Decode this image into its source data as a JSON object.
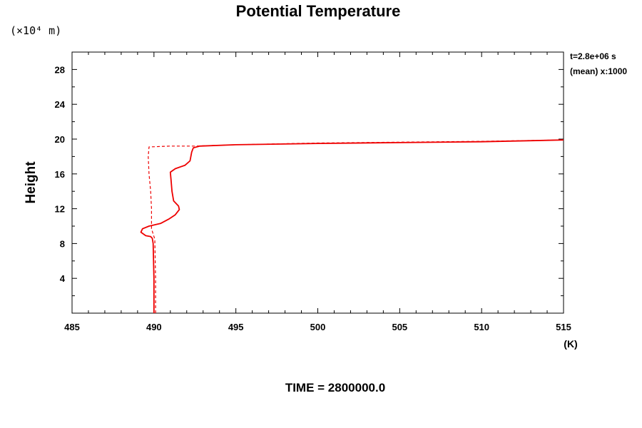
{
  "chart_data": {
    "type": "line",
    "title": "Potential Temperature",
    "y_unit": "(×10⁴ m)",
    "ylabel": "Height",
    "xlabel": "(K)",
    "xlim": [
      485,
      515
    ],
    "ylim": [
      0,
      30
    ],
    "x_ticks": [
      "485",
      "490",
      "495",
      "500",
      "505",
      "510",
      "515"
    ],
    "y_ticks": [
      "4",
      "8",
      "12",
      "16",
      "20",
      "24",
      "28"
    ],
    "annotations": [
      "t=2.8e+06 s",
      "(mean) x:1000"
    ],
    "footer": "TIME = 2800000.0",
    "color": "#ee0000",
    "series": [
      {
        "style": "solid",
        "points": [
          [
            490.0,
            0.0
          ],
          [
            490.0,
            4.0
          ],
          [
            489.95,
            8.0
          ],
          [
            489.9,
            8.6
          ],
          [
            489.8,
            8.8
          ],
          [
            489.5,
            8.9
          ],
          [
            489.2,
            9.3
          ],
          [
            489.3,
            9.7
          ],
          [
            489.7,
            10.0
          ],
          [
            490.4,
            10.3
          ],
          [
            490.9,
            10.8
          ],
          [
            491.3,
            11.3
          ],
          [
            491.55,
            11.9
          ],
          [
            491.5,
            12.3
          ],
          [
            491.2,
            12.9
          ],
          [
            491.1,
            14.0
          ],
          [
            491.05,
            15.2
          ],
          [
            491.0,
            16.2
          ],
          [
            491.3,
            16.6
          ],
          [
            491.9,
            17.0
          ],
          [
            492.2,
            17.5
          ],
          [
            492.3,
            18.5
          ],
          [
            492.4,
            19.0
          ],
          [
            492.8,
            19.2
          ],
          [
            495.0,
            19.35
          ],
          [
            500.0,
            19.5
          ],
          [
            505.0,
            19.6
          ],
          [
            510.0,
            19.7
          ],
          [
            515.0,
            19.9
          ]
        ]
      },
      {
        "style": "dashed",
        "points": [
          [
            490.1,
            0.0
          ],
          [
            490.1,
            4.0
          ],
          [
            490.05,
            8.5
          ],
          [
            489.85,
            9.7
          ],
          [
            489.85,
            12.0
          ],
          [
            489.8,
            14.0
          ],
          [
            489.7,
            16.0
          ],
          [
            489.65,
            18.0
          ],
          [
            489.7,
            19.1
          ],
          [
            491.0,
            19.2
          ],
          [
            492.5,
            19.2
          ],
          [
            495.0,
            19.35
          ],
          [
            500.0,
            19.55
          ],
          [
            505.0,
            19.65
          ],
          [
            510.0,
            19.75
          ],
          [
            515.0,
            19.9
          ]
        ]
      }
    ]
  }
}
